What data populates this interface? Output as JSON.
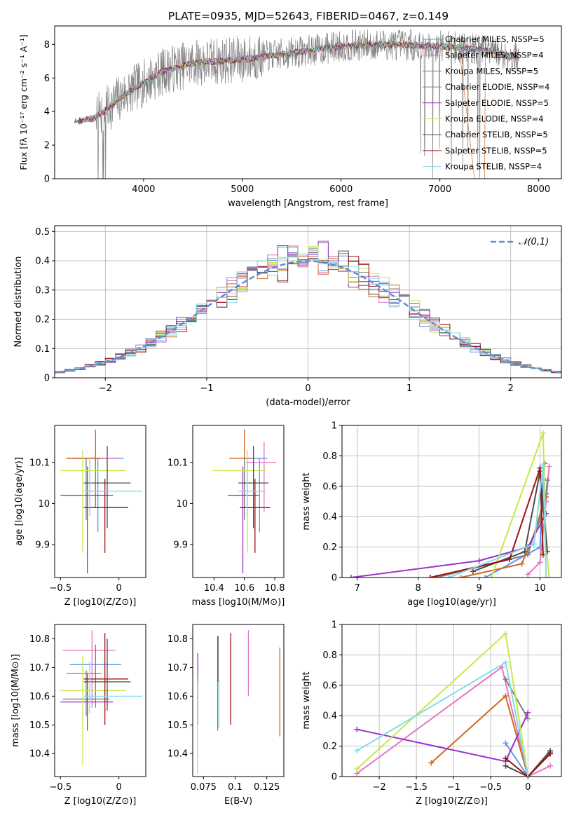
{
  "title": "PLATE=0935, MJD=52643, FIBERID=0467, z=0.149",
  "colors": {
    "Chabrier MILES": "#6495ED",
    "Salpeter MILES": "#E377C2",
    "Kroupa MILES": "#D2691E",
    "Chabrier ELODIE": "#808080",
    "Salpeter ELODIE": "#9932CC",
    "Kroupa ELODIE": "#C5E84B",
    "Chabrier STELIB": "#4D4D4D",
    "Salpeter STELIB": "#A01010",
    "Kroupa STELIB": "#7FDDE5"
  },
  "chart_data": [
    {
      "type": "line",
      "id": "spectrum",
      "xlabel": "wavelength [Angstrom, rest frame]",
      "ylabel": "Flux [fλ 10⁻¹⁷ erg cm⁻² s⁻¹ A⁻¹]",
      "xlim": [
        3100,
        8230
      ],
      "ylim": [
        0,
        9.1
      ],
      "xticks": [
        4000,
        5000,
        6000,
        7000,
        8000
      ],
      "yticks": [
        0,
        2,
        4,
        6,
        8
      ],
      "legend_position": "top-right",
      "continuum": {
        "x": [
          3300,
          3500,
          3600,
          3800,
          4000,
          4200,
          4500,
          5000,
          5500,
          6000,
          6500,
          7000,
          7500,
          7800
        ],
        "y": [
          3.4,
          3.6,
          4.0,
          5.0,
          5.7,
          6.4,
          6.9,
          7.1,
          7.5,
          7.9,
          8.0,
          7.9,
          7.6,
          7.2
        ]
      },
      "observed_noise": 1.2,
      "series": [
        {
          "name": "Chabrier MILES, NSSP=5"
        },
        {
          "name": "Salpeter MILES, NSSP=4"
        },
        {
          "name": "Kroupa MILES, NSSP=5"
        },
        {
          "name": "Chabrier ELODIE, NSSP=4"
        },
        {
          "name": "Salpeter ELODIE, NSSP=5"
        },
        {
          "name": "Kroupa ELODIE, NSSP=4"
        },
        {
          "name": "Chabrier STELIB, NSSP=5"
        },
        {
          "name": "Salpeter STELIB, NSSP=5"
        },
        {
          "name": "Kroupa STELIB, NSSP=4"
        }
      ]
    },
    {
      "type": "line",
      "id": "residuals",
      "xlabel": "(data-model)/error",
      "ylabel": "Normed distribution",
      "xlim": [
        -2.5,
        2.5
      ],
      "ylim": [
        0,
        0.52
      ],
      "xticks": [
        -2,
        -1,
        0,
        1,
        2
      ],
      "yticks": [
        0.0,
        0.1,
        0.2,
        0.3,
        0.4,
        0.5
      ],
      "grid": true,
      "legend_position": "top-right",
      "reference": {
        "name": "𝒩(0,1)",
        "mu": 0,
        "sigma": 1
      },
      "histogram_bin_width": 0.1
    },
    {
      "type": "scatter",
      "id": "age-vs-Z",
      "xlabel": "Z [log10(Z/Z⊙)]",
      "ylabel": "age  [log10(age/yr)]",
      "xlim": [
        -0.55,
        0.23
      ],
      "ylim": [
        9.82,
        10.19
      ],
      "xticks": [
        -0.5,
        0.0
      ],
      "yticks": [
        9.9,
        10.0,
        10.1
      ],
      "points": [
        {
          "series": "Chabrier MILES",
          "x": -0.18,
          "y": 10.11,
          "xerr": [
            0.22,
            0.22
          ],
          "yerr": [
            0.18,
            0.0
          ]
        },
        {
          "series": "Salpeter MILES",
          "x": -0.2,
          "y": 10.11,
          "xerr": [
            0.25,
            0.2
          ],
          "yerr": [
            0.12,
            0.05
          ]
        },
        {
          "series": "Kroupa MILES",
          "x": -0.2,
          "y": 10.11,
          "xerr": [
            0.25,
            0.05
          ],
          "yerr": [
            0.12,
            0.07
          ]
        },
        {
          "series": "Chabrier ELODIE",
          "x": -0.28,
          "y": 10.02,
          "xerr": [
            0.2,
            0.2
          ],
          "yerr": [
            0.06,
            0.09
          ]
        },
        {
          "series": "Salpeter ELODIE",
          "x": -0.27,
          "y": 10.02,
          "xerr": [
            0.23,
            0.22
          ],
          "yerr": [
            0.19,
            0.07
          ]
        },
        {
          "series": "Kroupa ELODIE",
          "x": -0.31,
          "y": 10.08,
          "xerr": [
            0.19,
            0.37
          ],
          "yerr": [
            0.2,
            0.05
          ]
        },
        {
          "series": "Chabrier STELIB",
          "x": -0.1,
          "y": 10.05,
          "xerr": [
            0.2,
            0.2
          ],
          "yerr": [
            0.11,
            0.09
          ]
        },
        {
          "series": "Salpeter STELIB",
          "x": -0.12,
          "y": 9.99,
          "xerr": [
            0.18,
            0.2
          ],
          "yerr": [
            0.11,
            0.07
          ]
        },
        {
          "series": "Kroupa STELIB",
          "x": -0.25,
          "y": 10.03,
          "xerr": [
            0.05,
            0.45
          ],
          "yerr": [
            0.06,
            0.08
          ]
        }
      ]
    },
    {
      "type": "scatter",
      "id": "age-vs-mass",
      "xlabel": "mass [log10(M/M⊙)]",
      "ylabel": "",
      "xlim": [
        10.26,
        10.86
      ],
      "ylim": [
        9.82,
        10.19
      ],
      "xticks": [
        10.4,
        10.6,
        10.8
      ],
      "yticks": [
        9.9,
        10.0,
        10.1
      ],
      "points": [
        {
          "series": "Chabrier MILES",
          "x": 10.7,
          "y": 10.11,
          "xerr": [
            0.12,
            0.05
          ],
          "yerr": [
            0.18,
            0.0
          ]
        },
        {
          "series": "Salpeter MILES",
          "x": 10.73,
          "y": 10.1,
          "xerr": [
            0.12,
            0.08
          ],
          "yerr": [
            0.12,
            0.05
          ]
        },
        {
          "series": "Kroupa MILES",
          "x": 10.6,
          "y": 10.11,
          "xerr": [
            0.1,
            0.05
          ],
          "yerr": [
            0.12,
            0.07
          ]
        },
        {
          "series": "Chabrier ELODIE",
          "x": 10.6,
          "y": 10.02,
          "xerr": [
            0.06,
            0.1
          ],
          "yerr": [
            0.06,
            0.09
          ]
        },
        {
          "series": "Salpeter ELODIE",
          "x": 10.59,
          "y": 10.02,
          "xerr": [
            0.1,
            0.1
          ],
          "yerr": [
            0.19,
            0.07
          ]
        },
        {
          "series": "Kroupa ELODIE",
          "x": 10.62,
          "y": 10.08,
          "xerr": [
            0.23,
            0.12
          ],
          "yerr": [
            0.2,
            0.05
          ]
        },
        {
          "series": "Chabrier STELIB",
          "x": 10.66,
          "y": 10.05,
          "xerr": [
            0.1,
            0.1
          ],
          "yerr": [
            0.11,
            0.09
          ]
        },
        {
          "series": "Salpeter STELIB",
          "x": 10.67,
          "y": 9.99,
          "xerr": [
            0.1,
            0.1
          ],
          "yerr": [
            0.11,
            0.07
          ]
        },
        {
          "series": "Kroupa STELIB",
          "x": 10.62,
          "y": 10.03,
          "xerr": [
            0.06,
            0.12
          ],
          "yerr": [
            0.06,
            0.08
          ]
        }
      ]
    },
    {
      "type": "line",
      "id": "mass-weight-vs-age",
      "xlabel": "age  [log10(age/yr)]",
      "ylabel": "mass weight",
      "xlim": [
        6.75,
        10.35
      ],
      "ylim": [
        0,
        1.0
      ],
      "xticks": [
        7,
        8,
        9,
        10
      ],
      "yticks": [
        0.0,
        0.2,
        0.4,
        0.6,
        0.8,
        1.0
      ],
      "grid": true,
      "series": [
        {
          "name": "Chabrier MILES",
          "x": [
            9.1,
            10.0,
            10.05,
            10.08
          ],
          "y": [
            0.0,
            0.2,
            0.65,
            0.75
          ]
        },
        {
          "name": "Salpeter MILES",
          "x": [
            9.8,
            10.0,
            10.1,
            10.15
          ],
          "y": [
            0.02,
            0.1,
            0.5,
            0.73
          ]
        },
        {
          "name": "Kroupa MILES",
          "x": [
            8.7,
            9.7,
            10.0,
            10.1
          ],
          "y": [
            0.0,
            0.09,
            0.38,
            0.53
          ]
        },
        {
          "name": "Chabrier ELODIE",
          "x": [
            8.3,
            9.8,
            10.1,
            10.12
          ],
          "y": [
            0.0,
            0.15,
            0.55,
            0.64
          ]
        },
        {
          "name": "Salpeter ELODIE",
          "x": [
            6.9,
            9.0,
            9.8,
            10.1
          ],
          "y": [
            0.0,
            0.11,
            0.2,
            0.42
          ]
        },
        {
          "name": "Kroupa ELODIE",
          "x": [
            9.2,
            10.05,
            10.1,
            10.15
          ],
          "y": [
            0.0,
            0.95,
            0.2,
            0.0
          ]
        },
        {
          "name": "Chabrier STELIB",
          "x": [
            8.9,
            9.75,
            10.0,
            10.12
          ],
          "y": [
            0.04,
            0.17,
            0.7,
            0.17
          ]
        },
        {
          "name": "Salpeter STELIB",
          "x": [
            8.2,
            9.5,
            10.0,
            10.05
          ],
          "y": [
            0.0,
            0.12,
            0.72,
            0.15
          ]
        },
        {
          "name": "Kroupa STELIB",
          "x": [
            8.5,
            9.9,
            10.05,
            10.1
          ],
          "y": [
            0.0,
            0.22,
            0.74,
            0.0
          ]
        }
      ]
    },
    {
      "type": "scatter",
      "id": "mass-vs-Z",
      "xlabel": "Z [log10(Z/Z⊙)]",
      "ylabel": "mass [log10(M/M⊙)]",
      "xlim": [
        -0.55,
        0.23
      ],
      "ylim": [
        10.32,
        10.85
      ],
      "xticks": [
        -0.5,
        0.0
      ],
      "yticks": [
        10.4,
        10.5,
        10.6,
        10.7,
        10.8
      ],
      "points": [
        {
          "series": "Chabrier MILES",
          "x": -0.2,
          "y": 10.71,
          "xerr": [
            0.22,
            0.22
          ],
          "yerr": [
            0.12,
            0.05
          ]
        },
        {
          "series": "Salpeter MILES",
          "x": -0.23,
          "y": 10.76,
          "xerr": [
            0.25,
            0.2
          ],
          "yerr": [
            0.2,
            0.07
          ]
        },
        {
          "series": "Kroupa MILES",
          "x": -0.2,
          "y": 10.68,
          "xerr": [
            0.25,
            0.05
          ],
          "yerr": [
            0.12,
            0.1
          ]
        },
        {
          "series": "Chabrier ELODIE",
          "x": -0.28,
          "y": 10.59,
          "xerr": [
            0.2,
            0.2
          ],
          "yerr": [
            0.06,
            0.1
          ]
        },
        {
          "series": "Salpeter ELODIE",
          "x": -0.27,
          "y": 10.58,
          "xerr": [
            0.23,
            0.22
          ],
          "yerr": [
            0.1,
            0.1
          ]
        },
        {
          "series": "Kroupa ELODIE",
          "x": -0.31,
          "y": 10.62,
          "xerr": [
            0.19,
            0.37
          ],
          "yerr": [
            0.26,
            0.12
          ]
        },
        {
          "series": "Chabrier STELIB",
          "x": -0.1,
          "y": 10.65,
          "xerr": [
            0.2,
            0.2
          ],
          "yerr": [
            0.1,
            0.15
          ]
        },
        {
          "series": "Salpeter STELIB",
          "x": -0.12,
          "y": 10.66,
          "xerr": [
            0.18,
            0.2
          ],
          "yerr": [
            0.16,
            0.16
          ]
        },
        {
          "series": "Kroupa STELIB",
          "x": -0.25,
          "y": 10.6,
          "xerr": [
            0.05,
            0.45
          ],
          "yerr": [
            0.06,
            0.12
          ]
        }
      ]
    },
    {
      "type": "scatter",
      "id": "mass-vs-EBV",
      "xlabel": "E(B-V)",
      "ylabel": "",
      "xlim": [
        0.0665,
        0.1385
      ],
      "ylim": [
        10.32,
        10.85
      ],
      "xticks": [
        0.075,
        0.1,
        0.125
      ],
      "yticks": [
        10.4,
        10.5,
        10.6,
        10.7,
        10.8
      ],
      "points": [
        {
          "series": "Chabrier MILES",
          "x": 0.0705,
          "y": 10.6,
          "xerr": [
            0,
            0
          ],
          "yerr": [
            0.1,
            0.05
          ]
        },
        {
          "series": "Salpeter MILES",
          "x": 0.1105,
          "y": 10.76,
          "xerr": [
            0,
            0
          ],
          "yerr": [
            0.16,
            0.07
          ]
        },
        {
          "series": "Kroupa MILES",
          "x": 0.1353,
          "y": 10.62,
          "xerr": [
            0,
            0
          ],
          "yerr": [
            0.16,
            0.15
          ]
        },
        {
          "series": "Chabrier ELODIE",
          "x": 0.0862,
          "y": 10.72,
          "xerr": [
            0,
            0
          ],
          "yerr": [
            0.24,
            0.09
          ]
        },
        {
          "series": "Salpeter ELODIE",
          "x": 0.0705,
          "y": 10.7,
          "xerr": [
            0,
            0
          ],
          "yerr": [
            0.06,
            0.05
          ]
        },
        {
          "series": "Kroupa ELODIE",
          "x": 0.0702,
          "y": 10.52,
          "xerr": [
            0,
            0
          ],
          "yerr": [
            0.19,
            0.14
          ]
        },
        {
          "series": "Chabrier STELIB",
          "x": 0.0865,
          "y": 10.7,
          "xerr": [
            0,
            0
          ],
          "yerr": [
            0.05,
            0.11
          ]
        },
        {
          "series": "Salpeter STELIB",
          "x": 0.0965,
          "y": 10.66,
          "xerr": [
            0,
            0
          ],
          "yerr": [
            0.16,
            0.16
          ]
        },
        {
          "series": "Kroupa STELIB",
          "x": 0.0872,
          "y": 10.6,
          "xerr": [
            0,
            0
          ],
          "yerr": [
            0.11,
            0.06
          ]
        }
      ]
    },
    {
      "type": "line",
      "id": "mass-weight-vs-Z",
      "xlabel": "Z [log10(Z/Z⊙)]",
      "ylabel": "mass weight",
      "xlim": [
        -2.5,
        0.45
      ],
      "ylim": [
        0,
        1.0
      ],
      "xticks": [
        -2.0,
        -1.5,
        -1.0,
        -0.5,
        0.0
      ],
      "yticks": [
        0.0,
        0.2,
        0.4,
        0.6,
        0.8,
        1.0
      ],
      "grid": true,
      "series": [
        {
          "name": "Chabrier MILES",
          "x": [
            -0.3,
            0.0,
            0.3
          ],
          "y": [
            0.22,
            0.0,
            0.16
          ]
        },
        {
          "name": "Salpeter MILES",
          "x": [
            -2.3,
            -0.35,
            0.0,
            0.3
          ],
          "y": [
            0.02,
            0.72,
            0.0,
            0.07
          ]
        },
        {
          "name": "Kroupa MILES",
          "x": [
            -1.3,
            -0.3,
            0.0,
            0.3
          ],
          "y": [
            0.09,
            0.53,
            0.0,
            0.15
          ]
        },
        {
          "name": "Chabrier ELODIE",
          "x": [
            -0.3,
            0.0
          ],
          "y": [
            0.64,
            0.38
          ]
        },
        {
          "name": "Salpeter ELODIE",
          "x": [
            -2.3,
            -0.3,
            0.0
          ],
          "y": [
            0.31,
            0.1,
            0.42
          ]
        },
        {
          "name": "Kroupa ELODIE",
          "x": [
            -2.3,
            -0.3,
            0.0
          ],
          "y": [
            0.05,
            0.94,
            0.0
          ]
        },
        {
          "name": "Chabrier STELIB",
          "x": [
            -0.3,
            0.0,
            0.3
          ],
          "y": [
            0.07,
            0.0,
            0.17
          ]
        },
        {
          "name": "Salpeter STELIB",
          "x": [
            -0.3,
            0.0,
            0.3
          ],
          "y": [
            0.12,
            0.0,
            0.15
          ]
        },
        {
          "name": "Kroupa STELIB",
          "x": [
            -2.3,
            -0.3,
            0.0
          ],
          "y": [
            0.17,
            0.75,
            0.0
          ]
        }
      ]
    }
  ]
}
